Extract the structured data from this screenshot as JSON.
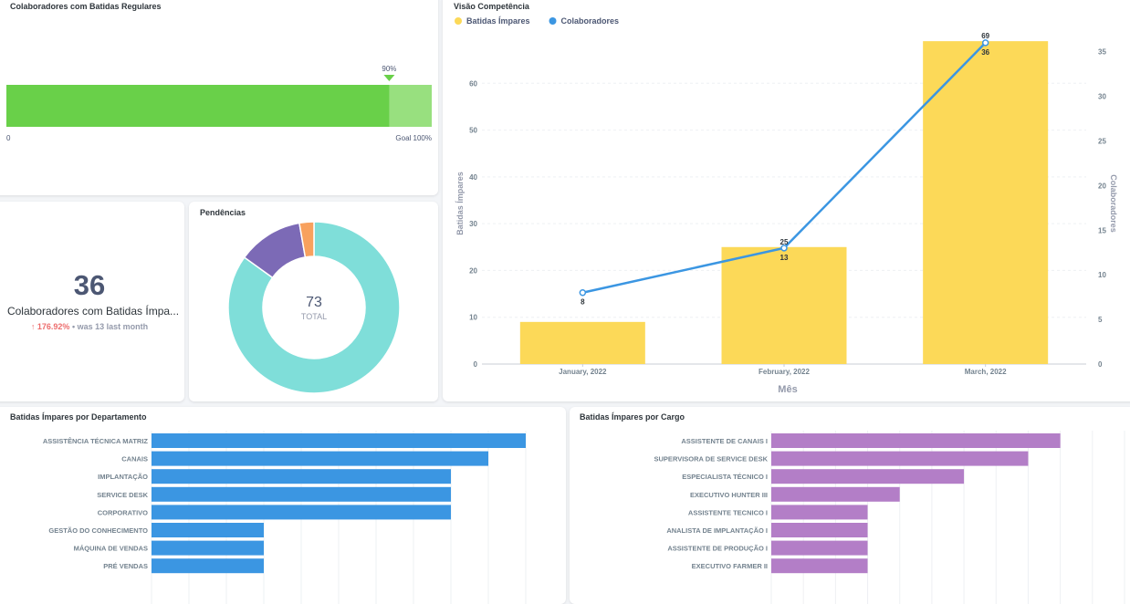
{
  "progress_card": {
    "title": "Colaboradores com Batidas Regulares",
    "value_label": "90%",
    "progress_fraction": 0.9,
    "min_label": "0",
    "goal_label": "Goal 100%",
    "fill_color": "#69d049",
    "remain_color": "#98e07f"
  },
  "metric_card": {
    "value": "36",
    "label": "Colaboradores com Batidas Ímpa...",
    "change": "176.92%",
    "comparison": "• was 13 last month",
    "arrow_icon": "arrow-up-icon",
    "change_color": "#ed6e6e"
  },
  "donut_card": {
    "title": "Pendências",
    "total_value": "73",
    "total_label": "TOTAL"
  },
  "combo_card": {
    "title": "Visão Competência"
  },
  "dept_card": {
    "title": "Batidas Ímpares por Departamento"
  },
  "cargo_card": {
    "title": "Batidas Ímpares por Cargo"
  },
  "chart_data": [
    {
      "type": "pie",
      "title": "Pendências",
      "total": 73,
      "slices": [
        {
          "value": 62,
          "color": "#7fded9"
        },
        {
          "value": 9,
          "color": "#7c6ab6"
        },
        {
          "value": 2,
          "color": "#f8a15e"
        }
      ]
    },
    {
      "type": "bar",
      "title": "Visão Competência",
      "categories": [
        "January, 2022",
        "February, 2022",
        "March, 2022"
      ],
      "xlabel": "Mês",
      "legend_placement": "top-left",
      "series": [
        {
          "name": "Batidas Ímpares",
          "kind": "bar",
          "axis": "left",
          "color": "#fcd958",
          "values": [
            9,
            25,
            69
          ]
        },
        {
          "name": "Colaboradores",
          "kind": "line",
          "axis": "right",
          "color": "#3b96e2",
          "values": [
            8,
            13,
            36
          ]
        }
      ],
      "y_left": {
        "label": "Batidas Ímpares",
        "min": 0,
        "max": 70,
        "ticks": [
          0,
          10,
          20,
          30,
          40,
          50,
          60
        ]
      },
      "y_right": {
        "label": "Colaboradores",
        "min": 0,
        "max": 36.6,
        "ticks": [
          0,
          5,
          10,
          15,
          20,
          25,
          30,
          35
        ]
      },
      "data_labels": {
        "bars": [
          "",
          "25",
          "69"
        ],
        "line": [
          "8",
          "13",
          "36"
        ]
      }
    },
    {
      "type": "bar",
      "orientation": "horizontal",
      "title": "Batidas Ímpares por Departamento",
      "color": "#3b96e2",
      "categories": [
        "ASSISTÊNCIA TÉCNICA MATRIZ",
        "CANAIS",
        "IMPLANTAÇÃO",
        "SERVICE DESK",
        "CORPORATIVO",
        "GESTÃO DO CONHECIMENTO",
        "MÁQUINA DE VENDAS",
        "PRÉ VENDAS"
      ],
      "values": [
        10,
        9,
        8,
        8,
        8,
        3,
        3,
        3
      ],
      "xlim": [
        0,
        10
      ]
    },
    {
      "type": "bar",
      "orientation": "horizontal",
      "title": "Batidas Ímpares por Cargo",
      "color": "#b37ec7",
      "categories": [
        "ASSISTENTE DE CANAIS I",
        "SUPERVISORA DE SERVICE DESK",
        "ESPECIALISTA TÉCNICO I",
        "EXECUTIVO HUNTER III",
        "ASSISTENTE TECNICO I",
        "ANALISTA DE IMPLANTAÇÃO I",
        "ASSISTENTE DE PRODUÇÃO I",
        "EXECUTIVO FARMER II"
      ],
      "values": [
        9,
        8,
        6,
        4,
        3,
        3,
        3,
        3
      ],
      "xlim": [
        0,
        11
      ]
    }
  ]
}
